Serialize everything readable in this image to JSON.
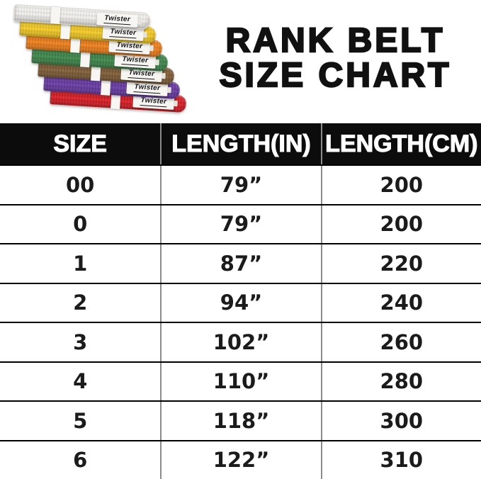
{
  "title": {
    "line1": "RANK BELT",
    "line2": "SIZE CHART"
  },
  "brand": "Twister",
  "belts": [
    {
      "name": "white-belt",
      "color": "#f4f2ee",
      "label": "Twister"
    },
    {
      "name": "yellow-belt",
      "color": "#f6cd29",
      "label": "Twister"
    },
    {
      "name": "orange-belt",
      "color": "#f1821f",
      "label": "Twister"
    },
    {
      "name": "green-belt",
      "color": "#41894e",
      "label": "Twister"
    },
    {
      "name": "brown-belt",
      "color": "#82603a",
      "label": "Twister"
    },
    {
      "name": "purple-belt",
      "color": "#6b3ea6",
      "label": "Twister"
    },
    {
      "name": "red-belt",
      "color": "#da2128",
      "label": "Twister"
    }
  ],
  "colors": {
    "header_bg": "#0c0c0c",
    "header_text": "#ffffff",
    "row_text": "#1b1b1b",
    "column_divider": "#8c8c8c",
    "row_divider": "#000000",
    "title_text": "#111111"
  },
  "chart_data": {
    "type": "table",
    "title": "RANK BELT SIZE CHART",
    "columns": [
      "SIZE",
      "LENGTH(IN)",
      "LENGTH(CM)"
    ],
    "rows": [
      [
        "00",
        "79”",
        "200"
      ],
      [
        "0",
        "79”",
        "200"
      ],
      [
        "1",
        "87”",
        "220"
      ],
      [
        "2",
        "94”",
        "240"
      ],
      [
        "3",
        "102”",
        "260"
      ],
      [
        "4",
        "110”",
        "280"
      ],
      [
        "5",
        "118”",
        "300"
      ],
      [
        "6",
        "122”",
        "310"
      ]
    ]
  }
}
